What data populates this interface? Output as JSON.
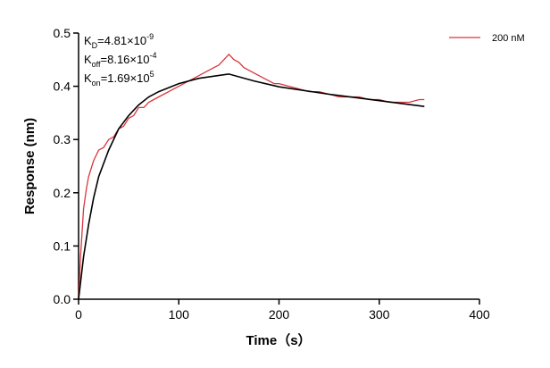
{
  "chart_data": {
    "type": "line",
    "x_label": "Time（s）",
    "y_label": "Response (nm)",
    "xlim": [
      0,
      400
    ],
    "xticks": [
      0,
      100,
      200,
      300,
      400
    ],
    "ylim": [
      0,
      0.5
    ],
    "yticks": [
      {
        "value": 0,
        "label": "0.0"
      },
      0.1,
      0.2,
      0.3,
      0.4,
      0.5
    ],
    "annotations": [
      {
        "base": "K",
        "sub": "D",
        "text": "=4.81×10",
        "sup": "-9"
      },
      {
        "base": "K",
        "sub": "off",
        "text": "=8.16×10",
        "sup": "-4"
      },
      {
        "base": "K",
        "sub": "on",
        "text": "=1.69×10",
        "sup": "5"
      }
    ],
    "legend": "top-right",
    "series": [
      {
        "name": "200 nM",
        "color": "#d9363e",
        "x": [
          0,
          2,
          5,
          8,
          10,
          15,
          20,
          25,
          30,
          35,
          40,
          45,
          50,
          55,
          60,
          65,
          70,
          75,
          80,
          85,
          90,
          95,
          100,
          105,
          110,
          115,
          120,
          125,
          130,
          135,
          140,
          145,
          150,
          155,
          160,
          165,
          170,
          175,
          180,
          185,
          190,
          195,
          200,
          210,
          220,
          230,
          240,
          250,
          260,
          270,
          280,
          290,
          300,
          310,
          320,
          330,
          340,
          345
        ],
        "values": [
          0,
          0.08,
          0.17,
          0.21,
          0.23,
          0.26,
          0.28,
          0.285,
          0.3,
          0.305,
          0.32,
          0.325,
          0.34,
          0.345,
          0.36,
          0.36,
          0.37,
          0.375,
          0.38,
          0.385,
          0.39,
          0.395,
          0.4,
          0.405,
          0.41,
          0.415,
          0.42,
          0.425,
          0.43,
          0.435,
          0.44,
          0.45,
          0.46,
          0.45,
          0.445,
          0.435,
          0.43,
          0.425,
          0.42,
          0.415,
          0.41,
          0.405,
          0.405,
          0.4,
          0.395,
          0.39,
          0.39,
          0.385,
          0.38,
          0.38,
          0.38,
          0.375,
          0.375,
          0.37,
          0.37,
          0.37,
          0.375,
          0.375
        ]
      },
      {
        "color": "#000000",
        "x": [
          0,
          5,
          10,
          15,
          20,
          30,
          40,
          50,
          60,
          70,
          80,
          100,
          120,
          150,
          175,
          200,
          250,
          300,
          345
        ],
        "values": [
          0,
          0.08,
          0.14,
          0.19,
          0.23,
          0.28,
          0.32,
          0.345,
          0.365,
          0.38,
          0.39,
          0.405,
          0.415,
          0.423,
          0.41,
          0.399,
          0.385,
          0.373,
          0.362
        ]
      }
    ]
  }
}
